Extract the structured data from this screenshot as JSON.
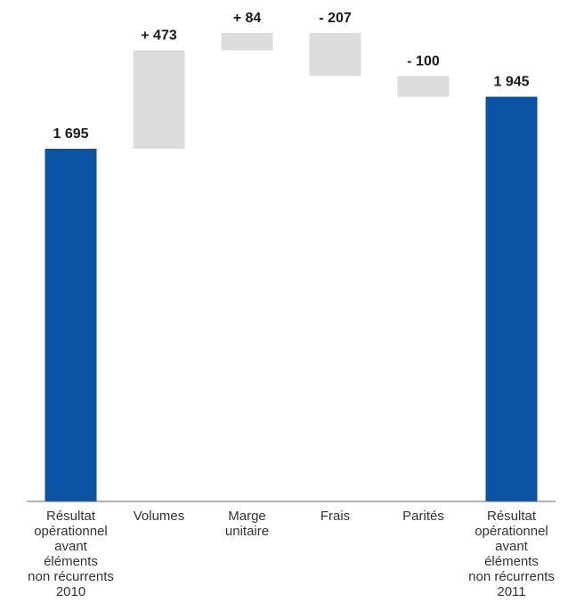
{
  "chart_data": {
    "type": "bar",
    "subtype": "waterfall",
    "categories": [
      [
        "Résultat",
        "opérationnel",
        "avant",
        "éléments",
        "non récurrents",
        "2010"
      ],
      [
        "Volumes"
      ],
      [
        "Marge",
        "unitaire"
      ],
      [
        "Frais"
      ],
      [
        "Parités"
      ],
      [
        "Résultat",
        "opérationnel",
        "avant",
        "éléments",
        "non récurrents",
        "2011"
      ]
    ],
    "steps": [
      {
        "kind": "total",
        "value": 1695,
        "label": "1 695"
      },
      {
        "kind": "delta",
        "value": 473,
        "label": "+ 473"
      },
      {
        "kind": "delta",
        "value": 84,
        "label": "+ 84"
      },
      {
        "kind": "delta",
        "value": -207,
        "label": "- 207"
      },
      {
        "kind": "delta",
        "value": -100,
        "label": "- 100"
      },
      {
        "kind": "total",
        "value": 1945,
        "label": "1 945"
      }
    ],
    "ylim": [
      0,
      2410
    ],
    "grid": false,
    "colors": {
      "total": "#0a52a3",
      "delta": "#dcdcdc",
      "baseline": "#666666"
    }
  }
}
